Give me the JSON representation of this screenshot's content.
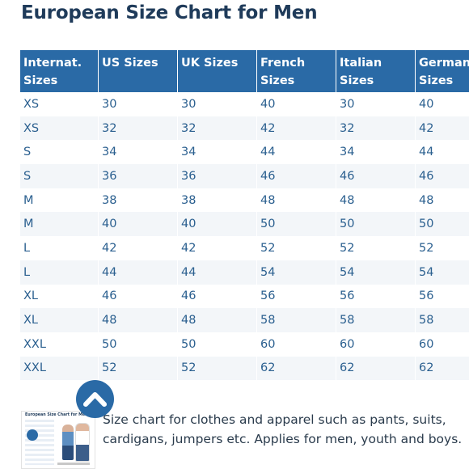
{
  "page_title": "European Size Chart for Men",
  "size_table": {
    "headers": [
      [
        "Internat.",
        "Sizes"
      ],
      [
        "US Sizes",
        ""
      ],
      [
        "UK Sizes",
        ""
      ],
      [
        "French",
        "Sizes"
      ],
      [
        "Italian Sizes",
        ""
      ],
      [
        "German",
        "Sizes"
      ]
    ],
    "rows": [
      [
        "XS",
        "30",
        "30",
        "40",
        "30",
        "40"
      ],
      [
        "XS",
        "32",
        "32",
        "42",
        "32",
        "42"
      ],
      [
        "S",
        "34",
        "34",
        "44",
        "34",
        "44"
      ],
      [
        "S",
        "36",
        "36",
        "46",
        "46",
        "46"
      ],
      [
        "M",
        "38",
        "38",
        "48",
        "48",
        "48"
      ],
      [
        "M",
        "40",
        "40",
        "50",
        "50",
        "50"
      ],
      [
        "L",
        "42",
        "42",
        "52",
        "52",
        "52"
      ],
      [
        "L",
        "44",
        "44",
        "54",
        "54",
        "54"
      ],
      [
        "XL",
        "46",
        "46",
        "56",
        "56",
        "56"
      ],
      [
        "XL",
        "48",
        "48",
        "58",
        "58",
        "58"
      ],
      [
        "XXL",
        "50",
        "50",
        "60",
        "60",
        "60"
      ],
      [
        "XXL",
        "52",
        "52",
        "62",
        "62",
        "62"
      ]
    ]
  },
  "thumbnail": {
    "title": "European Size Chart for Men"
  },
  "scroll_top_icon": "chevron-up-icon",
  "caption": "Size chart for clothes and apparel such as pants, suits, cardigans, jumpers etc. Applies for men, youth and boys.",
  "colors": {
    "header_bg": "#2a6aa6",
    "cell_text": "#2a5f8f",
    "title_text": "#1f3b5a",
    "stripe": "#f3f6f9"
  }
}
